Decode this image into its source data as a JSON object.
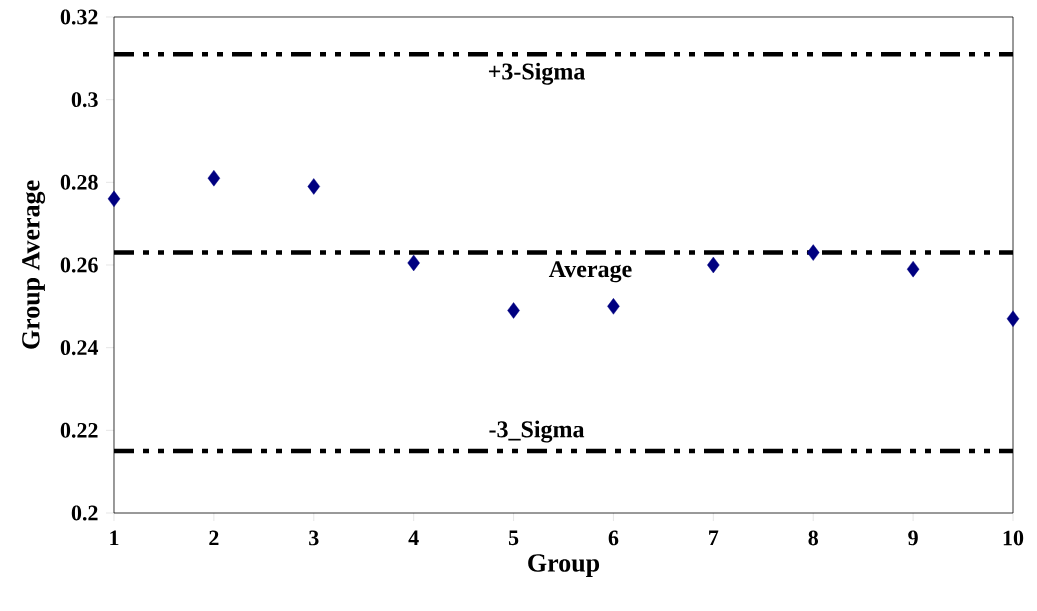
{
  "chart_data": {
    "type": "scatter",
    "xlabel": "Group",
    "ylabel": "Group Average",
    "x": [
      1,
      2,
      3,
      4,
      5,
      6,
      7,
      8,
      9,
      10
    ],
    "series": [
      {
        "color": "#000080",
        "values": [
          0.276,
          0.281,
          0.279,
          0.2605,
          0.249,
          0.25,
          0.26,
          0.263,
          0.259,
          0.247
        ]
      }
    ],
    "xlim": [
      1,
      10
    ],
    "xticks": [
      1,
      2,
      3,
      4,
      5,
      6,
      7,
      8,
      9,
      10
    ],
    "ylim": [
      0.2,
      0.32
    ],
    "yticks": [
      0.2,
      0.22,
      0.24,
      0.26,
      0.28,
      0.3,
      0.32
    ],
    "ref_lines": [
      {
        "axis": "y",
        "value": 0.311,
        "label": "+3-Sigma",
        "color": "#000000",
        "line_style": "dashed"
      },
      {
        "axis": "y",
        "value": 0.263,
        "label": "Average",
        "color": "#000000",
        "line_style": "dashed"
      },
      {
        "axis": "y",
        "value": 0.215,
        "label": "-3_Sigma",
        "color": "#000000",
        "line_style": "dashed"
      }
    ],
    "marker": "diamond",
    "grid": false
  }
}
